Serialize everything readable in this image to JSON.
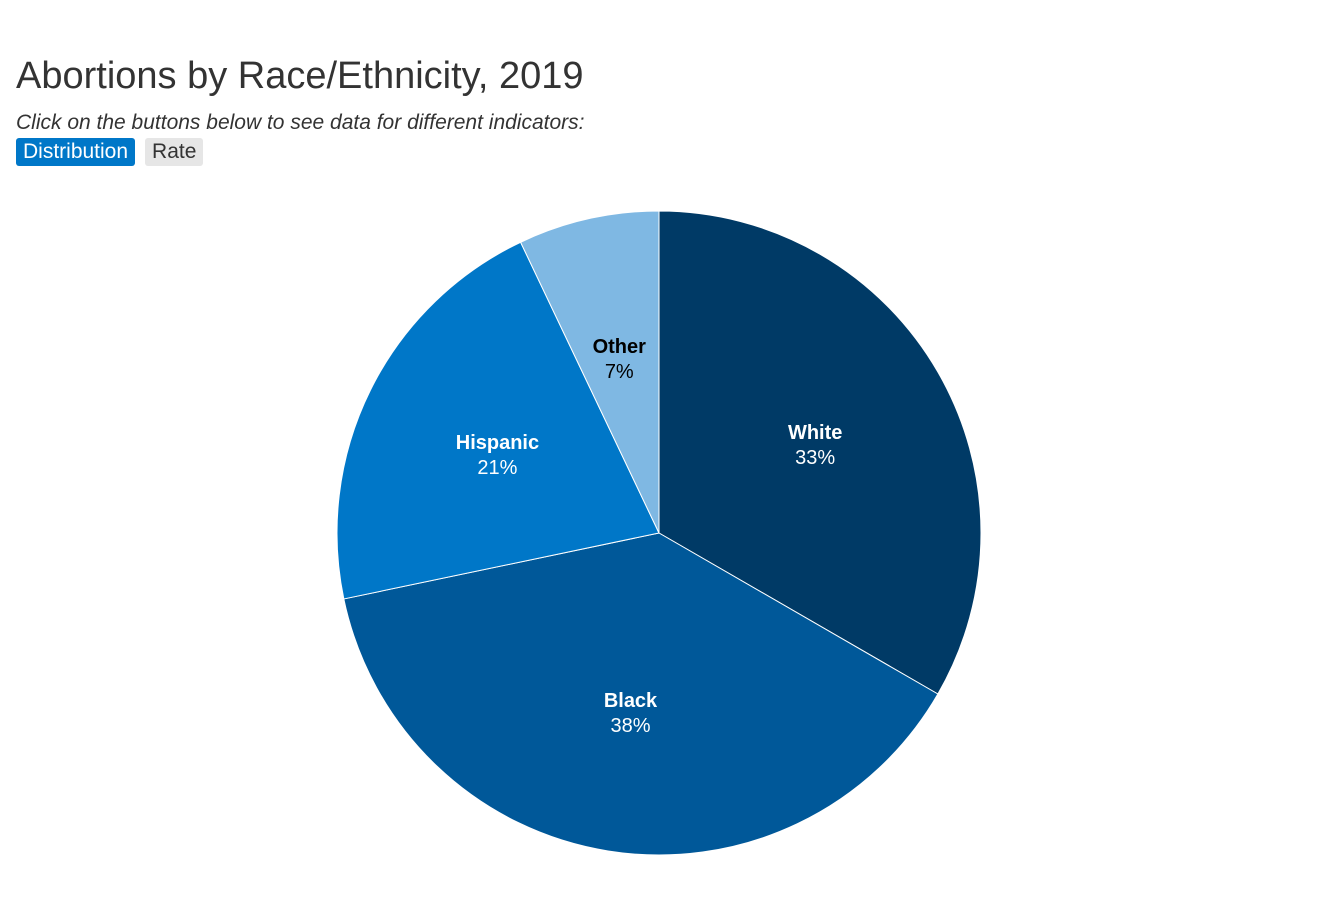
{
  "header": {
    "title": "Abortions by Race/Ethnicity, 2019",
    "subtitle": "Click on the buttons below to see data for different indicators:",
    "buttons": [
      {
        "label": "Distribution",
        "active": true
      },
      {
        "label": "Rate",
        "active": false
      }
    ]
  },
  "chart_data": {
    "type": "pie",
    "title": "Abortions by Race/Ethnicity, 2019",
    "indicator": "Distribution",
    "start_angle_deg": 0,
    "slices": [
      {
        "label": "White",
        "value": 33,
        "value_label": "33%",
        "color": "#003a66",
        "text_color": "#ffffff"
      },
      {
        "label": "Black",
        "value": 38,
        "value_label": "38%",
        "color": "#005899",
        "text_color": "#ffffff"
      },
      {
        "label": "Hispanic",
        "value": 21,
        "value_label": "21%",
        "color": "#0077c8",
        "text_color": "#ffffff"
      },
      {
        "label": "Other",
        "value": 7,
        "value_label": "7%",
        "color": "#7fb8e3",
        "text_color": "#000000"
      }
    ]
  }
}
